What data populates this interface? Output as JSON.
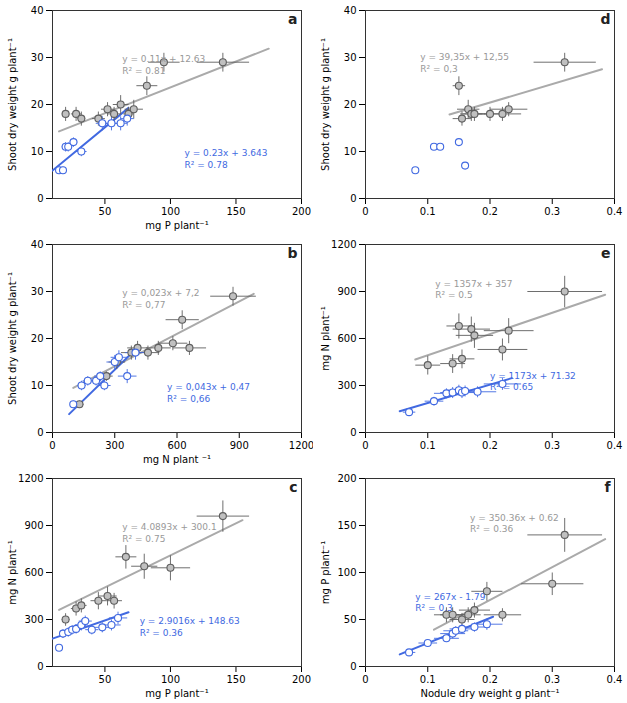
{
  "chart_data": [
    {
      "type": "scatter",
      "title": "a",
      "xlabel": "mg P plant⁻¹",
      "ylabel": "Shoot dry weight g plant⁻¹",
      "xlim": [
        10,
        200
      ],
      "ylim": [
        0,
        40
      ],
      "xticks": [
        50,
        100,
        150,
        200
      ],
      "yticks": [
        0,
        10,
        20,
        30,
        40
      ],
      "series": [
        {
          "type": "line",
          "color": "#aaaaaa",
          "x": [
            15,
            175
          ],
          "values": [
            14.28,
            31.88
          ]
        },
        {
          "type": "line",
          "color": "#4169e1",
          "x": [
            10,
            68
          ],
          "values": [
            5.943,
            19.283
          ]
        },
        {
          "type": "scatter",
          "color": "#c0c0c0",
          "marker": "circle",
          "x": [
            20,
            28,
            32,
            45,
            52,
            57,
            62,
            68,
            72,
            82,
            95,
            140
          ],
          "values": [
            18,
            18,
            17,
            17,
            19,
            18,
            20,
            18,
            19,
            24,
            29,
            29
          ],
          "xerr": [
            3,
            4,
            3,
            5,
            5,
            5,
            6,
            4,
            7,
            8,
            12,
            20
          ],
          "yerr": [
            1.5,
            1.5,
            1.5,
            1.5,
            1.5,
            1.5,
            2,
            1.5,
            2,
            2,
            2,
            2
          ]
        },
        {
          "type": "scatter",
          "color": "#4169e1",
          "marker": "hollow",
          "x": [
            15,
            18,
            20,
            22,
            26,
            32,
            48,
            55,
            62,
            67
          ],
          "values": [
            6,
            6,
            11,
            11,
            12,
            10,
            16,
            16,
            16,
            17
          ],
          "xerr": [
            2,
            2,
            3,
            3,
            3,
            4,
            5,
            5,
            5,
            5
          ],
          "yerr": [
            0.8,
            0.8,
            1,
            1,
            1,
            1,
            1.5,
            1.5,
            1.5,
            1.5
          ]
        }
      ],
      "annotations": [
        {
          "text": "y = 0.11x + 12.63\nR² = 0.81",
          "color": "#999999"
        },
        {
          "text": "y = 0.23x + 3.643\nR² = 0.78",
          "color": "#4169e1"
        }
      ]
    },
    {
      "type": "scatter",
      "title": "b",
      "xlabel": "mg N plant ⁻¹",
      "ylabel": "Shoot dry weight g plant⁻¹",
      "xlim": [
        0,
        1200
      ],
      "ylim": [
        0,
        40
      ],
      "xticks": [
        0,
        300,
        600,
        900,
        1200
      ],
      "yticks": [
        0,
        10,
        20,
        30,
        40
      ],
      "series": [
        {
          "type": "line",
          "color": "#aaaaaa",
          "x": [
            100,
            970
          ],
          "values": [
            9.5,
            29.51
          ]
        },
        {
          "type": "line",
          "color": "#4169e1",
          "x": [
            80,
            400
          ],
          "values": [
            3.91,
            17.67
          ]
        },
        {
          "type": "scatter",
          "color": "#c0c0c0",
          "marker": "circle",
          "x": [
            130,
            260,
            310,
            380,
            410,
            460,
            510,
            580,
            625,
            660,
            870
          ],
          "values": [
            6,
            12,
            15,
            17,
            18,
            17,
            18,
            19,
            24,
            18,
            29
          ],
          "xerr": [
            20,
            30,
            40,
            50,
            50,
            55,
            60,
            70,
            80,
            80,
            110
          ],
          "yerr": [
            0.8,
            1,
            1.5,
            1.5,
            1.5,
            1.5,
            1.5,
            1.5,
            2,
            1.5,
            2
          ]
        },
        {
          "type": "scatter",
          "color": "#4169e1",
          "marker": "hollow",
          "x": [
            100,
            140,
            170,
            210,
            230,
            250,
            300,
            320,
            360,
            400
          ],
          "values": [
            6,
            10,
            11,
            11,
            12,
            10,
            15,
            16,
            12,
            17
          ],
          "xerr": [
            15,
            20,
            25,
            25,
            30,
            30,
            40,
            40,
            45,
            50
          ],
          "yerr": [
            0.8,
            1,
            1,
            1,
            1,
            1,
            1.5,
            1.5,
            1.5,
            1.5
          ]
        }
      ],
      "annotations": [
        {
          "text": "y = 0,023x + 7,2\nR² = 0,77",
          "color": "#999999"
        },
        {
          "text": "y = 0,043x + 0,47\nR² = 0,66",
          "color": "#4169e1"
        }
      ]
    },
    {
      "type": "scatter",
      "title": "c",
      "xlabel": "mg P plant⁻¹",
      "ylabel": "mg N plant⁻¹",
      "xlim": [
        10,
        200
      ],
      "ylim": [
        0,
        1200
      ],
      "xticks": [
        50,
        100,
        150,
        200
      ],
      "yticks": [
        0,
        300,
        600,
        900,
        1200
      ],
      "series": [
        {
          "type": "line",
          "color": "#aaaaaa",
          "x": [
            15,
            155
          ],
          "values": [
            361.4395,
            933.9415
          ]
        },
        {
          "type": "line",
          "color": "#4169e1",
          "x": [
            10,
            68
          ],
          "values": [
            177.646,
            345.9388
          ]
        },
        {
          "type": "scatter",
          "color": "#c0c0c0",
          "marker": "circle",
          "x": [
            20,
            28,
            32,
            45,
            52,
            57,
            66,
            80,
            100,
            140
          ],
          "values": [
            300,
            370,
            390,
            420,
            450,
            420,
            700,
            640,
            630,
            960
          ],
          "xerr": [
            3,
            4,
            4,
            6,
            7,
            6,
            8,
            10,
            15,
            20
          ],
          "yerr": [
            40,
            45,
            45,
            55,
            60,
            50,
            75,
            80,
            80,
            100
          ]
        },
        {
          "type": "scatter",
          "color": "#4169e1",
          "marker": "hollow",
          "x": [
            15,
            18,
            22,
            25,
            28,
            32,
            35,
            40,
            48,
            55,
            60
          ],
          "values": [
            120,
            210,
            220,
            235,
            240,
            265,
            290,
            235,
            250,
            265,
            310
          ],
          "xerr": [
            2,
            3,
            3,
            3,
            4,
            5,
            5,
            5,
            6,
            7,
            7
          ],
          "yerr": [
            20,
            28,
            30,
            30,
            30,
            35,
            35,
            30,
            32,
            35,
            40
          ]
        }
      ],
      "annotations": [
        {
          "text": "y = 4.0893x + 300.1\nR² = 0.75",
          "color": "#999999"
        },
        {
          "text": "y = 2.9016x + 148.63\nR² = 0.36",
          "color": "#4169e1"
        }
      ]
    },
    {
      "type": "scatter",
      "title": "d",
      "ylabel": "Shoot dry weight g plant⁻¹",
      "xlim": [
        0,
        0.4
      ],
      "ylim": [
        0,
        40
      ],
      "xticks": [
        0,
        0.1,
        0.2,
        0.3,
        0.4
      ],
      "yticks": [
        0,
        10,
        20,
        30,
        40
      ],
      "series": [
        {
          "type": "line",
          "color": "#aaaaaa",
          "x": [
            0.135,
            0.38
          ],
          "values": [
            17.86225,
            27.503
          ]
        },
        {
          "type": "scatter",
          "color": "#c0c0c0",
          "marker": "circle",
          "x": [
            0.15,
            0.155,
            0.165,
            0.17,
            0.175,
            0.2,
            0.22,
            0.23,
            0.32
          ],
          "values": [
            24,
            17,
            19,
            18,
            18,
            18,
            18,
            19,
            29
          ],
          "xerr": [
            0.01,
            0.015,
            0.018,
            0.018,
            0.018,
            0.02,
            0.03,
            0.03,
            0.05
          ],
          "yerr": [
            2,
            1.5,
            2,
            1.5,
            1.5,
            1.5,
            1.5,
            1.5,
            2
          ]
        },
        {
          "type": "scatter",
          "color": "#4169e1",
          "marker": "hollow",
          "x": [
            0.08,
            0.11,
            0.12,
            0.15,
            0.16
          ],
          "values": [
            6,
            11,
            11,
            12,
            7
          ],
          "xerr": [
            0,
            0,
            0,
            0,
            0
          ],
          "yerr": [
            0,
            0,
            0,
            0,
            0
          ]
        }
      ],
      "annotations": [
        {
          "text": "y = 39,35x + 12,55\nR² = 0,3",
          "color": "#999999"
        }
      ]
    },
    {
      "type": "scatter",
      "title": "e",
      "ylabel": "mg N plant⁻¹",
      "xlim": [
        0,
        0.4
      ],
      "ylim": [
        0,
        1200
      ],
      "xticks": [
        0,
        0.1,
        0.2,
        0.3,
        0.4
      ],
      "yticks": [
        0,
        300,
        600,
        900,
        1200
      ],
      "series": [
        {
          "type": "line",
          "color": "#aaaaaa",
          "x": [
            0.08,
            0.385
          ],
          "values": [
            465.56,
            879.445
          ]
        },
        {
          "type": "line",
          "color": "#4169e1",
          "x": [
            0.055,
            0.235
          ],
          "values": [
            135.835,
            346.975
          ]
        },
        {
          "type": "scatter",
          "color": "#c0c0c0",
          "marker": "circle",
          "x": [
            0.1,
            0.14,
            0.15,
            0.155,
            0.17,
            0.175,
            0.22,
            0.23,
            0.32
          ],
          "values": [
            430,
            440,
            680,
            470,
            660,
            620,
            530,
            650,
            900
          ],
          "xerr": [
            0.02,
            0.02,
            0.02,
            0.02,
            0.03,
            0.03,
            0.04,
            0.04,
            0.06
          ],
          "yerr": [
            60,
            60,
            80,
            60,
            80,
            80,
            70,
            80,
            100
          ]
        },
        {
          "type": "scatter",
          "color": "#4169e1",
          "marker": "hollow",
          "x": [
            0.07,
            0.11,
            0.13,
            0.14,
            0.15,
            0.155,
            0.16,
            0.18,
            0.22
          ],
          "values": [
            130,
            200,
            250,
            255,
            270,
            255,
            265,
            260,
            310
          ],
          "xerr": [
            0.01,
            0.015,
            0.02,
            0.02,
            0.02,
            0.02,
            0.02,
            0.03,
            0.03
          ],
          "yerr": [
            20,
            28,
            32,
            35,
            35,
            35,
            35,
            35,
            38
          ]
        }
      ],
      "annotations": [
        {
          "text": "y = 1357x + 357\nR² = 0.5",
          "color": "#999999"
        },
        {
          "text": "y = 1173x + 71.32\nR² = 0.65",
          "color": "#4169e1"
        }
      ]
    },
    {
      "type": "scatter",
      "title": "f",
      "xlabel": "Nodule dry weight g plant⁻¹",
      "ylabel": "mg P plant⁻¹",
      "xlim": [
        0,
        0.4
      ],
      "ylim": [
        0,
        200
      ],
      "xticks": [
        0,
        0.1,
        0.2,
        0.3,
        0.4
      ],
      "yticks": [
        0,
        50,
        100,
        150,
        200
      ],
      "series": [
        {
          "type": "line",
          "color": "#aaaaaa",
          "x": [
            0.11,
            0.385
          ],
          "values": [
            39.1596,
            135.5086
          ]
        },
        {
          "type": "line",
          "color": "#4169e1",
          "x": [
            0.055,
            0.205
          ],
          "values": [
            12.895,
            52.945
          ]
        },
        {
          "type": "scatter",
          "color": "#c0c0c0",
          "marker": "circle",
          "x": [
            0.13,
            0.14,
            0.155,
            0.165,
            0.175,
            0.195,
            0.22,
            0.3,
            0.32
          ],
          "values": [
            55,
            55,
            50,
            55,
            60,
            80,
            55,
            88,
            140
          ],
          "xerr": [
            0.02,
            0.02,
            0.02,
            0.02,
            0.025,
            0.025,
            0.03,
            0.05,
            0.06
          ],
          "yerr": [
            8,
            8,
            7,
            8,
            8,
            10,
            7,
            12,
            18
          ]
        },
        {
          "type": "scatter",
          "color": "#4169e1",
          "marker": "hollow",
          "x": [
            0.07,
            0.1,
            0.13,
            0.14,
            0.145,
            0.155,
            0.175,
            0.195
          ],
          "values": [
            15,
            25,
            30,
            35,
            38,
            40,
            42,
            45
          ],
          "xerr": [
            0.01,
            0.015,
            0.02,
            0.02,
            0.02,
            0.02,
            0.025,
            0.025
          ],
          "yerr": [
            2,
            3,
            4,
            5,
            5,
            5,
            5,
            6
          ]
        }
      ],
      "annotations": [
        {
          "text": "y = 350.36x + 0.62\nR² = 0.36",
          "color": "#999999"
        },
        {
          "text": "y = 267x - 1.79\nR² = 0.3",
          "color": "#4169e1"
        }
      ]
    }
  ]
}
